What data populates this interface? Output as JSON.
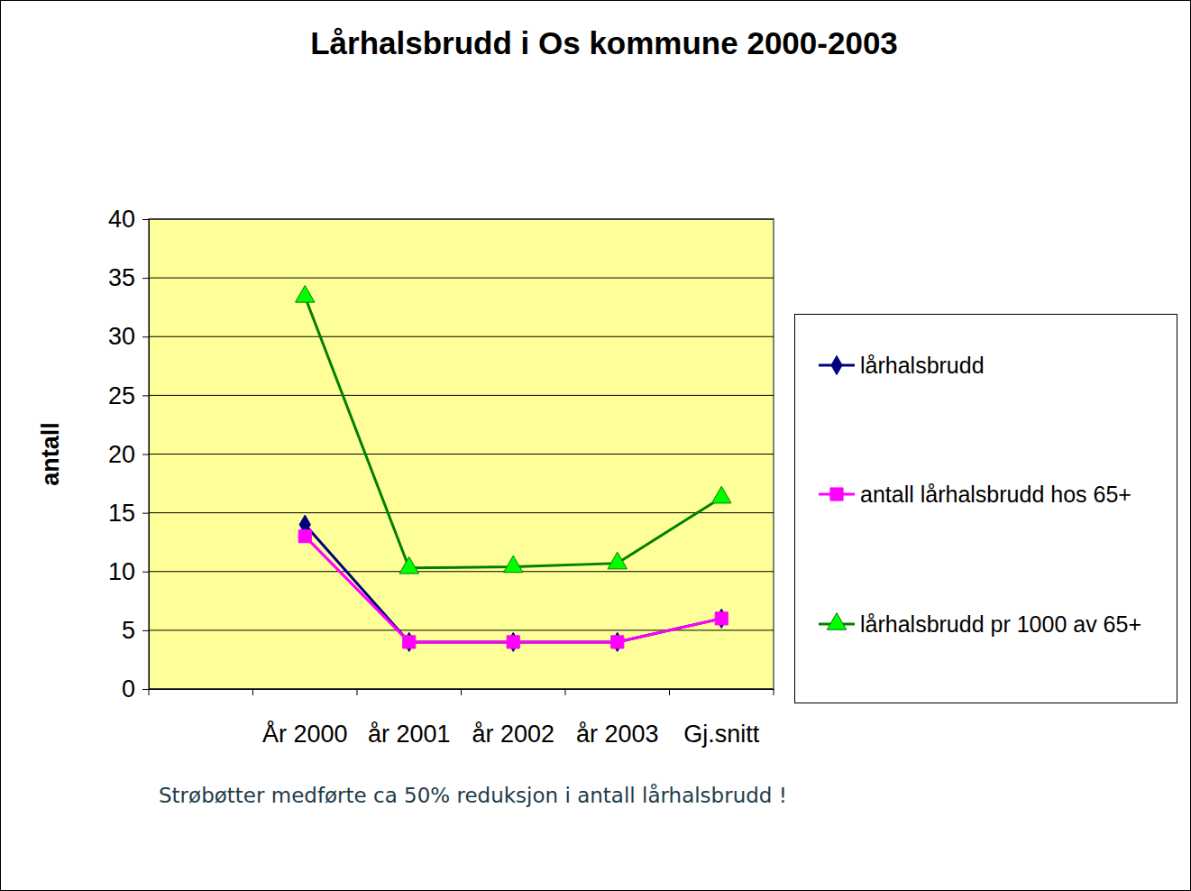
{
  "chart_data": {
    "type": "line",
    "title": "Lårhalsbrudd i Os kommune 2000-2003",
    "y_label": "antall",
    "annotation": "Strøbøtter medførte ca 50% reduksjon i antall lårhalsbrudd !",
    "categories": [
      null,
      "År 2000",
      "år 2001",
      "år 2002",
      "år 2003",
      "Gj.snitt"
    ],
    "series": [
      {
        "name": "lårhalsbrudd",
        "color": "#000080",
        "marker": "diamond",
        "values": [
          null,
          14,
          4,
          4,
          4,
          6
        ]
      },
      {
        "name": "antall lårhalsbrudd hos 65+",
        "color": "#ff00ff",
        "marker": "square",
        "values": [
          null,
          13,
          4,
          4,
          4,
          6
        ]
      },
      {
        "name": "lårhalsbrudd pr 1000 av 65+",
        "color": "#008000",
        "marker": "triangle",
        "values": [
          null,
          33.4,
          10.3,
          10.4,
          10.7,
          16.3
        ]
      }
    ],
    "ylim": [
      0,
      40
    ],
    "yticks": [
      0,
      5,
      10,
      15,
      20,
      25,
      30,
      35,
      40
    ],
    "grid": true,
    "legend": "right"
  }
}
